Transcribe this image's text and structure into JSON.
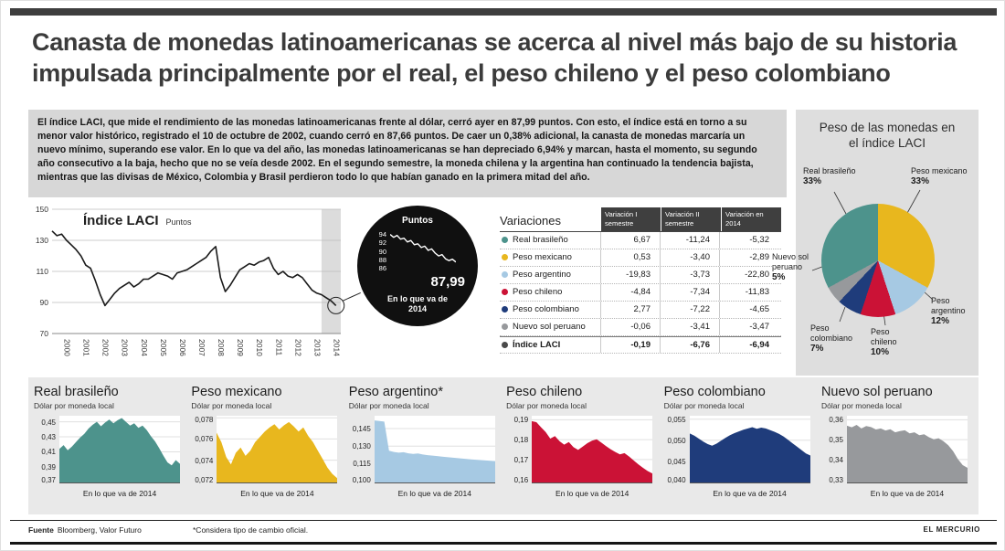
{
  "page": {
    "title": "Canasta de monedas latinoamericanas se acerca al nivel más bajo de su historia impulsada principalmente por el real, el peso chileno y el peso colombiano",
    "intro": "El índice LACI, que mide el rendimiento de las monedas latinoamericanas frente al dólar, cerró ayer en 87,99 puntos. Con esto, el índice está en torno a su menor valor histórico, registrado el 10 de octubre de 2002, cuando cerró en 87,66 puntos. De caer un 0,38% adicional, la canasta de monedas marcaría un nuevo mínimo, superando ese valor. En lo que va del año, las monedas latinoamericanas se han depreciado 6,94% y marcan, hasta el momento, su segundo año consecutivo a la baja, hecho que no se veía desde 2002. En el segundo semestre, la moneda chilena y la argentina han continuado la tendencia bajista, mientras que las divisas de México, Colombia y Brasil perdieron todo lo que habían ganado en la primera mitad del año.",
    "footer": {
      "source_label": "Fuente",
      "source_value": "Bloomberg, Valor Futuro",
      "footnote": "*Considera tipo de cambio oficial.",
      "brand": "EL MERCURIO"
    }
  },
  "chart_data": [
    {
      "type": "line",
      "title": "Índice LACI",
      "unit": "Puntos",
      "x_start_year": 2000,
      "x_end_year": 2015,
      "points_per_year": 4,
      "xticks": [
        "2000",
        "2001",
        "2002",
        "2003",
        "2004",
        "2005",
        "2006",
        "2007",
        "2008",
        "2009",
        "2010",
        "2011",
        "2012",
        "2013",
        "2014"
      ],
      "yticks": [
        150,
        130,
        110,
        90,
        70
      ],
      "ylim": [
        70,
        150
      ],
      "highlight_from_year": 2014,
      "values": [
        136,
        133,
        134,
        130,
        127,
        124,
        120,
        114,
        112,
        104,
        95,
        88,
        92,
        96,
        99,
        101,
        103,
        100,
        102,
        105,
        105,
        107,
        109,
        108,
        107,
        105,
        109,
        110,
        111,
        113,
        115,
        117,
        119,
        123,
        126,
        106,
        97,
        101,
        106,
        111,
        113,
        115,
        114,
        116,
        117,
        119,
        112,
        108,
        110,
        107,
        106,
        108,
        106,
        102,
        98,
        96,
        95,
        93,
        91,
        88
      ],
      "callout": {
        "title": "Puntos",
        "yticks": [
          94,
          92,
          90,
          88,
          86
        ],
        "ylim": [
          85.8,
          94.8
        ],
        "values": [
          93.9,
          93.3,
          93.7,
          92.9,
          93.1,
          92.3,
          92.6,
          91.7,
          91.9,
          91.1,
          91.4,
          90.5,
          90.8,
          89.9,
          89.3,
          89.6,
          88.7,
          88.3,
          88.6,
          88.0
        ],
        "value_label": "87,99",
        "caption": "En lo que va de 2014"
      }
    },
    {
      "type": "table",
      "title": "Variaciones",
      "columns": [
        "Variación I semestre",
        "Variación II semestre",
        "Variación en 2014"
      ],
      "rows": [
        {
          "label": "Real brasileño",
          "color": "#4d938c",
          "values": [
            "6,67",
            "-11,24",
            "-5,32"
          ]
        },
        {
          "label": "Peso mexicano",
          "color": "#e8b71e",
          "values": [
            "0,53",
            "-3,40",
            "-2,89"
          ]
        },
        {
          "label": "Peso argentino",
          "color": "#a6c9e3",
          "values": [
            "-19,83",
            "-3,73",
            "-22,80"
          ]
        },
        {
          "label": "Peso chileno",
          "color": "#cb1236",
          "values": [
            "-4,84",
            "-7,34",
            "-11,83"
          ]
        },
        {
          "label": "Peso colombiano",
          "color": "#1f3c7b",
          "values": [
            "2,77",
            "-7,22",
            "-4,65"
          ]
        },
        {
          "label": "Nuevo sol peruano",
          "color": "#97999c",
          "values": [
            "-0,06",
            "-3,41",
            "-3,47"
          ]
        },
        {
          "label": "Índice LACI",
          "color": "#4a4a4a",
          "values": [
            "-0,19",
            "-6,76",
            "-6,94"
          ],
          "bold": true
        }
      ]
    },
    {
      "type": "pie",
      "title": "Peso de las monedas en el índice LACI",
      "slices": [
        {
          "label": "Peso mexicano",
          "pct": 33,
          "pct_label": "33%",
          "color": "#e8b71e"
        },
        {
          "label": "Peso argentino",
          "pct": 12,
          "pct_label": "12%",
          "color": "#a6c9e3"
        },
        {
          "label": "Peso chileno",
          "pct": 10,
          "pct_label": "10%",
          "color": "#cb1236"
        },
        {
          "label": "Peso colombiano",
          "pct": 7,
          "pct_label": "7%",
          "color": "#1f3c7b"
        },
        {
          "label": "Nuevo sol peruano",
          "pct": 5,
          "pct_label": "5%",
          "color": "#97999c"
        },
        {
          "label": "Real brasileño",
          "pct": 33,
          "pct_label": "33%",
          "color": "#4d938c"
        }
      ]
    },
    {
      "type": "area",
      "title": "Real brasileño",
      "subtitle": "Dólar por moneda local",
      "caption": "En lo que va de 2014",
      "color": "#4d938c",
      "ymin": 0.368,
      "ymax": 0.458,
      "yticks": [
        "0,45",
        "0,43",
        "0,41",
        "0,39",
        "0,37"
      ],
      "ytick_values": [
        0.45,
        0.43,
        0.41,
        0.39,
        0.37
      ],
      "values": [
        0.414,
        0.419,
        0.412,
        0.417,
        0.423,
        0.429,
        0.434,
        0.441,
        0.446,
        0.45,
        0.444,
        0.449,
        0.453,
        0.448,
        0.452,
        0.455,
        0.45,
        0.445,
        0.448,
        0.442,
        0.445,
        0.439,
        0.431,
        0.424,
        0.415,
        0.405,
        0.396,
        0.392,
        0.399,
        0.394
      ]
    },
    {
      "type": "area",
      "title": "Peso mexicano",
      "subtitle": "Dólar por moneda local",
      "caption": "En lo que va de 2014",
      "color": "#e8b71e",
      "ymin": 0.0718,
      "ymax": 0.0782,
      "yticks": [
        "0,078",
        "0,076",
        "0,074",
        "0,072"
      ],
      "ytick_values": [
        0.078,
        0.076,
        0.074,
        0.072
      ],
      "values": [
        0.0766,
        0.0757,
        0.0743,
        0.0736,
        0.0747,
        0.0752,
        0.0744,
        0.0749,
        0.0757,
        0.0762,
        0.0767,
        0.0771,
        0.0774,
        0.0769,
        0.0773,
        0.0776,
        0.0772,
        0.0767,
        0.0771,
        0.0763,
        0.0757,
        0.0749,
        0.0741,
        0.0733,
        0.0727,
        0.0723
      ]
    },
    {
      "type": "area",
      "title": "Peso argentino*",
      "subtitle": "Dólar por moneda local",
      "caption": "En lo que va de 2014",
      "color": "#a6c9e3",
      "ymin": 0.098,
      "ymax": 0.156,
      "yticks": [
        "0,145",
        "0,130",
        "0,115",
        "0,100"
      ],
      "ytick_values": [
        0.145,
        0.13,
        0.115,
        0.1
      ],
      "values": [
        0.152,
        0.1515,
        0.151,
        0.126,
        0.125,
        0.1243,
        0.1247,
        0.1238,
        0.1232,
        0.1236,
        0.1228,
        0.1222,
        0.1218,
        0.1214,
        0.121,
        0.1206,
        0.1202,
        0.1198,
        0.1194,
        0.119,
        0.1186,
        0.1183,
        0.118,
        0.1177,
        0.1174,
        0.1171
      ]
    },
    {
      "type": "area",
      "title": "Peso chileno",
      "subtitle": "Dólar por moneda local",
      "caption": "En lo que va de 2014",
      "color": "#cb1236",
      "ymin": 0.158,
      "ymax": 0.192,
      "yticks": [
        "0,19",
        "0,18",
        "0,17",
        "0,16"
      ],
      "ytick_values": [
        0.19,
        0.18,
        0.17,
        0.16
      ],
      "values": [
        0.1893,
        0.1888,
        0.1862,
        0.1838,
        0.1805,
        0.1818,
        0.1792,
        0.1775,
        0.1788,
        0.1762,
        0.1748,
        0.1765,
        0.1782,
        0.1795,
        0.1802,
        0.1785,
        0.1768,
        0.1752,
        0.1738,
        0.1726,
        0.1732,
        0.1715,
        0.1695,
        0.1675,
        0.1658,
        0.1642,
        0.163
      ]
    },
    {
      "type": "area",
      "title": "Peso colombiano",
      "subtitle": "Dólar por moneda local",
      "caption": "En lo que va de 2014",
      "color": "#1f3c7b",
      "ymin": 0.0398,
      "ymax": 0.0558,
      "yticks": [
        "0,055",
        "0,050",
        "0,045",
        "0,040"
      ],
      "ytick_values": [
        0.055,
        0.05,
        0.045,
        0.04
      ],
      "values": [
        0.0516,
        0.0511,
        0.0504,
        0.0497,
        0.0491,
        0.0487,
        0.0492,
        0.0499,
        0.0506,
        0.0512,
        0.0517,
        0.0521,
        0.0525,
        0.0528,
        0.0531,
        0.0527,
        0.053,
        0.0528,
        0.0524,
        0.052,
        0.0515,
        0.0509,
        0.0501,
        0.0493,
        0.0485,
        0.0477,
        0.0469,
        0.0464
      ]
    },
    {
      "type": "area",
      "title": "Nuevo sol peruano",
      "subtitle": "Dólar por moneda local",
      "caption": "En lo que va de 2014",
      "color": "#97999c",
      "ymin": 0.328,
      "ymax": 0.362,
      "yticks": [
        "0,36",
        "0,35",
        "0,34",
        "0,33"
      ],
      "ytick_values": [
        0.36,
        0.35,
        0.34,
        0.33
      ],
      "values": [
        0.357,
        0.3562,
        0.3574,
        0.3556,
        0.3568,
        0.3563,
        0.3551,
        0.3556,
        0.3546,
        0.3552,
        0.3537,
        0.3543,
        0.3547,
        0.3532,
        0.3537,
        0.3522,
        0.3527,
        0.3512,
        0.3502,
        0.3507,
        0.3492,
        0.3472,
        0.3442,
        0.3402,
        0.3372,
        0.3358
      ]
    }
  ]
}
